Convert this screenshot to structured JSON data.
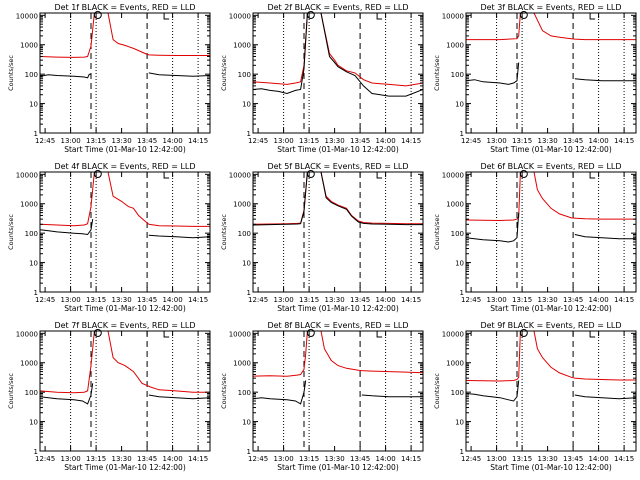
{
  "colors": {
    "events": "#000000",
    "lld": "#e00000",
    "frame": "#000000",
    "background": "#ffffff"
  },
  "shared": {
    "xlabel": "Start Time (01-Mar-10 12:42:00)",
    "ylabel": "Counts/sec",
    "x_ticks": [
      "12:45",
      "13:00",
      "13:15",
      "13:30",
      "13:45",
      "14:00",
      "14:15"
    ],
    "y_ticks": [
      "1",
      "10",
      "100",
      "1000",
      "10000"
    ],
    "x_tick_minutes": [
      3,
      18,
      33,
      48,
      63,
      78,
      93
    ],
    "xlim_minutes": [
      0,
      100
    ],
    "ylim": [
      1,
      12000
    ],
    "y_scale": "log",
    "dotted_vlines_minutes": [
      18,
      33,
      78,
      93
    ],
    "dashed_vlines_minutes": [
      30,
      63
    ],
    "marker_circle_minute": 34,
    "marker_bracket_minute": 73
  },
  "chart_data": [
    {
      "type": "line",
      "title": "Det 1f BLACK = Events, RED = LLD",
      "series": [
        {
          "x": [
            0,
            10,
            20,
            26,
            28,
            30,
            32,
            35,
            40,
            43,
            46,
            50,
            55,
            62,
            64,
            70,
            80,
            90,
            100
          ],
          "values": [
            400,
            380,
            370,
            380,
            400,
            900,
            12000,
            12000,
            12000,
            1500,
            1100,
            950,
            750,
            500,
            450,
            440,
            430,
            430,
            430
          ]
        },
        {
          "x": [
            0,
            5,
            10,
            20,
            26,
            28,
            29,
            30,
            62,
            63,
            64,
            70,
            80,
            90,
            100
          ],
          "values": [
            85,
            95,
            90,
            85,
            80,
            75,
            100,
            100,
            null,
            null,
            110,
            95,
            90,
            85,
            90
          ]
        }
      ]
    },
    {
      "type": "line",
      "title": "Det 2f BLACK = Events, RED = LLD",
      "series": [
        {
          "x": [
            0,
            10,
            20,
            25,
            28,
            30,
            32,
            35,
            40,
            45,
            48,
            50,
            55,
            60,
            65,
            70,
            80,
            90,
            100
          ],
          "values": [
            55,
            50,
            45,
            50,
            55,
            200,
            12000,
            12000,
            12000,
            500,
            300,
            200,
            130,
            110,
            65,
            50,
            45,
            40,
            50
          ]
        },
        {
          "x": [
            0,
            5,
            10,
            15,
            20,
            25,
            28,
            30,
            32,
            35,
            40,
            45,
            48,
            50,
            55,
            60,
            65,
            70,
            80,
            90,
            100
          ],
          "values": [
            30,
            32,
            28,
            26,
            22,
            28,
            30,
            150,
            12000,
            12000,
            12000,
            400,
            250,
            180,
            120,
            90,
            40,
            22,
            18,
            18,
            30
          ]
        }
      ]
    },
    {
      "type": "line",
      "title": "Det 3f BLACK = Events, RED = LLD",
      "series": [
        {
          "x": [
            0,
            20,
            30,
            31,
            32,
            33,
            40,
            45,
            50,
            55,
            62,
            64,
            70,
            80,
            90,
            100
          ],
          "values": [
            1500,
            1500,
            1600,
            2000,
            12000,
            12000,
            12000,
            3000,
            2000,
            1800,
            1600,
            1550,
            1500,
            1500,
            1500,
            1500
          ]
        },
        {
          "x": [
            0,
            5,
            10,
            20,
            25,
            28,
            30,
            31,
            62,
            63,
            64,
            70,
            80,
            90,
            100
          ],
          "values": [
            60,
            65,
            55,
            50,
            45,
            50,
            60,
            250,
            null,
            null,
            70,
            65,
            60,
            60,
            60
          ]
        }
      ]
    },
    {
      "type": "line",
      "title": "Det 4f BLACK = Events, RED = LLD",
      "series": [
        {
          "x": [
            0,
            10,
            20,
            26,
            28,
            30,
            32,
            35,
            40,
            43,
            48,
            52,
            55,
            58,
            62,
            64,
            70,
            80,
            90,
            100
          ],
          "values": [
            200,
            190,
            180,
            190,
            210,
            800,
            12000,
            12000,
            12000,
            1800,
            1200,
            800,
            700,
            400,
            250,
            200,
            180,
            175,
            170,
            170
          ]
        },
        {
          "x": [
            0,
            5,
            10,
            20,
            25,
            28,
            30,
            31,
            62,
            63,
            64,
            70,
            80,
            90,
            100
          ],
          "values": [
            130,
            120,
            110,
            100,
            95,
            90,
            130,
            300,
            null,
            null,
            85,
            80,
            75,
            70,
            75
          ]
        }
      ]
    },
    {
      "type": "line",
      "title": "Det 5f BLACK = Events, RED = LLD",
      "series": [
        {
          "x": [
            0,
            10,
            20,
            26,
            28,
            30,
            32,
            35,
            40,
            43,
            46,
            50,
            55,
            58,
            62,
            65,
            70,
            80,
            90,
            100
          ],
          "values": [
            200,
            205,
            210,
            215,
            220,
            600,
            12000,
            12000,
            12000,
            1800,
            1200,
            900,
            700,
            400,
            260,
            230,
            220,
            215,
            210,
            210
          ]
        },
        {
          "x": [
            0,
            10,
            20,
            26,
            28,
            30,
            32,
            35,
            40,
            43,
            46,
            50,
            55,
            58,
            62,
            65,
            70,
            80,
            90,
            100
          ],
          "values": [
            190,
            195,
            200,
            205,
            210,
            550,
            12000,
            12000,
            12000,
            1600,
            1100,
            850,
            650,
            380,
            240,
            215,
            205,
            200,
            195,
            195
          ]
        }
      ]
    },
    {
      "type": "line",
      "title": "Det 6f BLACK = Events, RED = LLD",
      "series": [
        {
          "x": [
            0,
            20,
            28,
            30,
            31,
            32,
            33,
            40,
            42,
            45,
            50,
            55,
            62,
            65,
            70,
            80,
            90,
            100
          ],
          "values": [
            280,
            270,
            280,
            300,
            350,
            12000,
            12000,
            12000,
            3000,
            1500,
            700,
            450,
            330,
            320,
            310,
            300,
            300,
            300
          ]
        },
        {
          "x": [
            0,
            5,
            10,
            20,
            25,
            28,
            30,
            31,
            62,
            63,
            64,
            70,
            80,
            90,
            100
          ],
          "values": [
            70,
            65,
            60,
            55,
            50,
            55,
            70,
            500,
            null,
            null,
            90,
            75,
            70,
            65,
            65
          ]
        }
      ]
    },
    {
      "type": "line",
      "title": "Det 7f BLACK = Events, RED = LLD",
      "series": [
        {
          "x": [
            0,
            10,
            20,
            26,
            28,
            30,
            32,
            35,
            40,
            43,
            46,
            50,
            55,
            60,
            65,
            70,
            80,
            90,
            100
          ],
          "values": [
            110,
            100,
            95,
            100,
            110,
            800,
            12000,
            12000,
            12000,
            1500,
            1000,
            800,
            500,
            200,
            150,
            120,
            110,
            100,
            100
          ]
        },
        {
          "x": [
            0,
            5,
            10,
            20,
            25,
            28,
            30,
            31,
            62,
            63,
            64,
            70,
            80,
            90,
            100
          ],
          "values": [
            70,
            65,
            60,
            55,
            50,
            40,
            80,
            200,
            null,
            null,
            80,
            70,
            65,
            60,
            65
          ]
        }
      ]
    },
    {
      "type": "line",
      "title": "Det 8f BLACK = Events, RED = LLD",
      "series": [
        {
          "x": [
            0,
            10,
            20,
            26,
            28,
            30,
            31,
            32,
            33,
            40,
            42,
            46,
            50,
            55,
            62,
            64,
            70,
            80,
            90,
            100
          ],
          "values": [
            350,
            360,
            350,
            380,
            400,
            600,
            2000,
            12000,
            12000,
            12000,
            3000,
            1200,
            800,
            650,
            560,
            540,
            520,
            500,
            480,
            460
          ]
        },
        {
          "x": [
            0,
            5,
            10,
            20,
            25,
            28,
            30,
            31,
            62,
            63,
            64,
            70,
            80,
            90,
            100
          ],
          "values": [
            60,
            65,
            60,
            55,
            50,
            40,
            100,
            250,
            null,
            null,
            80,
            75,
            70,
            70,
            70
          ]
        }
      ]
    },
    {
      "type": "line",
      "title": "Det 9f BLACK = Events, RED = LLD",
      "series": [
        {
          "x": [
            0,
            20,
            28,
            30,
            31,
            32,
            33,
            40,
            42,
            45,
            50,
            55,
            62,
            64,
            70,
            80,
            90,
            100
          ],
          "values": [
            250,
            240,
            250,
            270,
            320,
            12000,
            12000,
            12000,
            3000,
            1500,
            700,
            450,
            320,
            300,
            280,
            270,
            260,
            260
          ]
        },
        {
          "x": [
            0,
            5,
            10,
            20,
            25,
            28,
            30,
            31,
            62,
            63,
            64,
            70,
            80,
            90,
            100
          ],
          "values": [
            90,
            85,
            75,
            65,
            55,
            50,
            70,
            250,
            null,
            null,
            80,
            70,
            65,
            60,
            65
          ]
        }
      ]
    }
  ]
}
